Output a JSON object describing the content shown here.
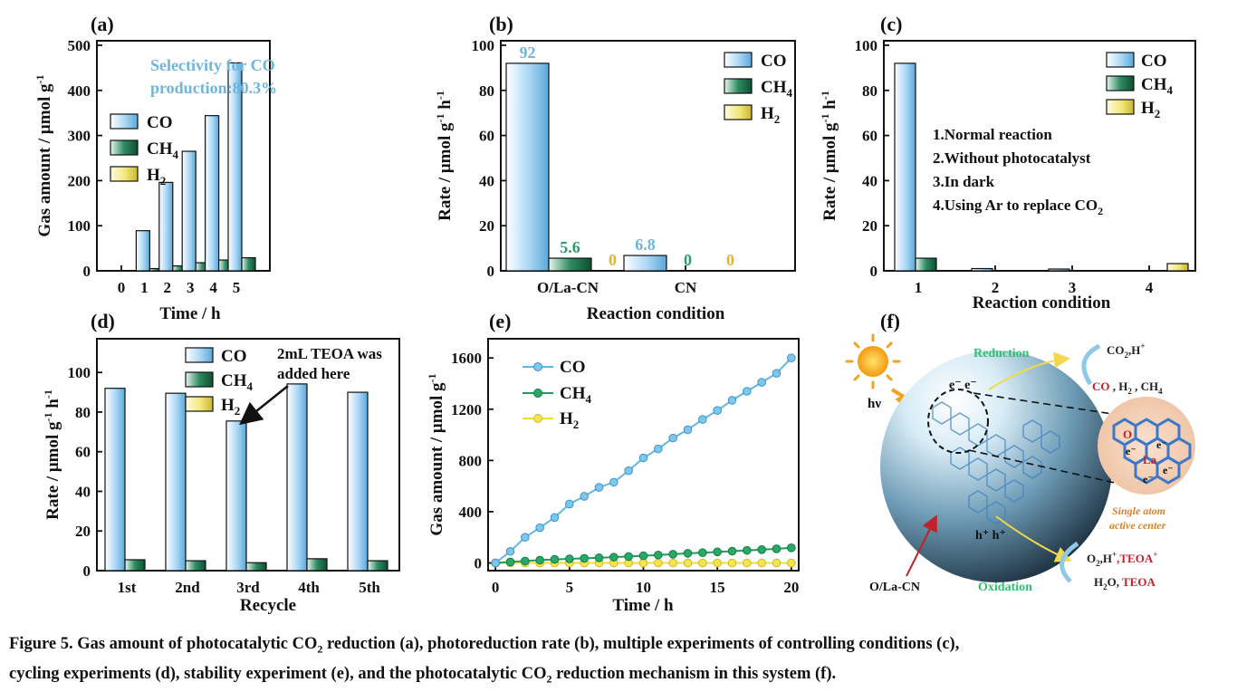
{
  "caption": {
    "line1_pre": "Figure 5. Gas amount of photocatalytic CO",
    "line1_sub": "2",
    "line1_post": " reduction (a), photoreduction rate (b), multiple experiments of controlling conditions (c),",
    "line2_pre": "cycling experiments (d), stability experiment (e), and the photocatalytic CO",
    "line2_sub": "2",
    "line2_post": " reduction mechanism in this system (f)."
  },
  "colors": {
    "co_fill": "#a9d6f5",
    "ch4_fill": "#2e8b62",
    "h2_fill": "#f2e77a",
    "co_line": "#5fb8e6",
    "ch4_line": "#1f9d5c",
    "h2_line": "#f0dd3a",
    "selectivity_text": "#6fb6dc"
  },
  "legend": {
    "co": "CO",
    "ch4_main": "CH",
    "ch4_sub": "4",
    "h2_main": "H",
    "h2_sub": "2"
  },
  "chart_data": [
    {
      "panel": "(a)",
      "type": "bar",
      "categories": [
        "0",
        "1",
        "2",
        "3",
        "4",
        "5"
      ],
      "series": [
        {
          "name": "CO",
          "values": [
            0,
            89,
            196,
            265,
            344,
            461
          ]
        },
        {
          "name": "CH4",
          "values": [
            0,
            5,
            11,
            18,
            24,
            29
          ]
        },
        {
          "name": "H2",
          "values": [
            0,
            0,
            0,
            0,
            0,
            0
          ]
        }
      ],
      "xlabel": "Time / h",
      "ylabel_pre": "Gas amount / μmol g",
      "ylabel_sup": "-1",
      "ylim": [
        0,
        510
      ],
      "yticks": [
        0,
        100,
        200,
        300,
        400,
        500
      ],
      "annotation_line1": "Selectivity for CO",
      "annotation_line2": "production:80.3%"
    },
    {
      "panel": "(b)",
      "type": "bar",
      "categories": [
        "O/La-CN",
        "CN"
      ],
      "series": [
        {
          "name": "CO",
          "values": [
            92,
            6.8
          ]
        },
        {
          "name": "CH4",
          "values": [
            5.6,
            0
          ]
        },
        {
          "name": "H2",
          "values": [
            0,
            0
          ]
        }
      ],
      "data_labels": [
        [
          "92",
          "5.6",
          "0"
        ],
        [
          "6.8",
          "0",
          "0"
        ]
      ],
      "xlabel": "Reaction condition",
      "ylabel_pre": "Rate / μmol g",
      "ylabel_sup1": "-1",
      "ylabel_mid": " h",
      "ylabel_sup2": "-1",
      "ylim": [
        0,
        102
      ],
      "yticks": [
        0,
        20,
        40,
        60,
        80,
        100
      ]
    },
    {
      "panel": "(c)",
      "type": "bar",
      "categories": [
        "1",
        "2",
        "3",
        "4"
      ],
      "series": [
        {
          "name": "CO",
          "values": [
            92,
            1,
            0.8,
            0
          ]
        },
        {
          "name": "CH4",
          "values": [
            5.6,
            0,
            0,
            0
          ]
        },
        {
          "name": "H2",
          "values": [
            0,
            0,
            0,
            3.2
          ]
        }
      ],
      "conditions": [
        "1.Normal reaction",
        "2.Without photocatalyst",
        "3.In dark",
        "4.Using Ar to replace CO"
      ],
      "conditions_last_sub": "2",
      "xlabel": "Reaction condition",
      "ylabel_pre": "Rate / μmol g",
      "ylabel_sup1": "-1",
      "ylabel_mid": " h",
      "ylabel_sup2": "-1",
      "ylim": [
        0,
        102
      ],
      "yticks": [
        0,
        20,
        40,
        60,
        80,
        100
      ]
    },
    {
      "panel": "(d)",
      "type": "bar",
      "categories": [
        "1st",
        "2nd",
        "3rd",
        "4th",
        "5th"
      ],
      "series": [
        {
          "name": "CO",
          "values": [
            92,
            89.5,
            75.5,
            94.2,
            90
          ]
        },
        {
          "name": "CH4",
          "values": [
            5.5,
            5,
            4,
            6,
            5
          ]
        },
        {
          "name": "H2",
          "values": [
            0,
            0,
            0,
            0,
            0
          ]
        }
      ],
      "annotation_line1": "2mL TEOA was",
      "annotation_line2": "added here",
      "xlabel": "Recycle",
      "ylabel_pre": "Rate / μmol g",
      "ylabel_sup1": "-1",
      "ylabel_mid": " h",
      "ylabel_sup2": "-1",
      "ylim": [
        0,
        117
      ],
      "yticks": [
        0,
        20,
        40,
        60,
        80,
        100
      ]
    },
    {
      "panel": "(e)",
      "type": "line",
      "x": [
        0,
        1,
        2,
        3,
        4,
        5,
        6,
        7,
        8,
        9,
        10,
        11,
        12,
        13,
        14,
        15,
        16,
        17,
        18,
        19,
        20
      ],
      "series": [
        {
          "name": "CO",
          "values": [
            0,
            90,
            200,
            275,
            355,
            460,
            520,
            590,
            630,
            720,
            820,
            890,
            975,
            1040,
            1120,
            1190,
            1270,
            1340,
            1410,
            1480,
            1600
          ]
        },
        {
          "name": "CH4",
          "values": [
            0,
            8,
            15,
            22,
            28,
            32,
            36,
            40,
            45,
            50,
            56,
            62,
            68,
            75,
            80,
            86,
            92,
            98,
            104,
            110,
            118
          ]
        },
        {
          "name": "H2",
          "values": [
            0,
            0,
            0,
            0,
            0,
            0,
            0,
            0,
            0,
            0,
            0,
            0,
            0,
            0,
            0,
            0,
            0,
            0,
            0,
            0,
            0
          ]
        }
      ],
      "xlabel": "Time / h",
      "ylabel_pre": "Gas amount / μmol g",
      "ylabel_sup": "-1",
      "xlim": [
        -0.5,
        20.5
      ],
      "xticks": [
        0,
        5,
        10,
        15,
        20
      ],
      "ylim": [
        -60,
        1750
      ],
      "yticks": [
        0,
        400,
        800,
        1200,
        1600
      ]
    }
  ],
  "panel_f": {
    "label": "(f)",
    "reduction": "Reduction",
    "oxidation": "Oxidation",
    "co2_h_pre": "CO",
    "co2_h_sub": "2",
    "co2_h_post": ",H",
    "products_co": "CO",
    "products_rest": " , H",
    "products_rest_sub": "2",
    "products_rest_post": " , CH",
    "products_rest_sub2": "4",
    "o2_pre": "O",
    "o2_sub": "2",
    "o2_mid": ",H",
    "o2_post": ",TEOA",
    "h2o_pre": "H",
    "h2o_sub": "2",
    "h2o_post": "O, ",
    "teoa": "TEOA",
    "hv": "hν",
    "electrons": "e⁻  e⁻",
    "holes": "h⁺ h⁺",
    "material": "O/La-CN",
    "single_atom_line1": "Single atom",
    "single_atom_line2": "active center",
    "inset_o": "O",
    "inset_la": "La",
    "inset_e": "e⁻"
  }
}
